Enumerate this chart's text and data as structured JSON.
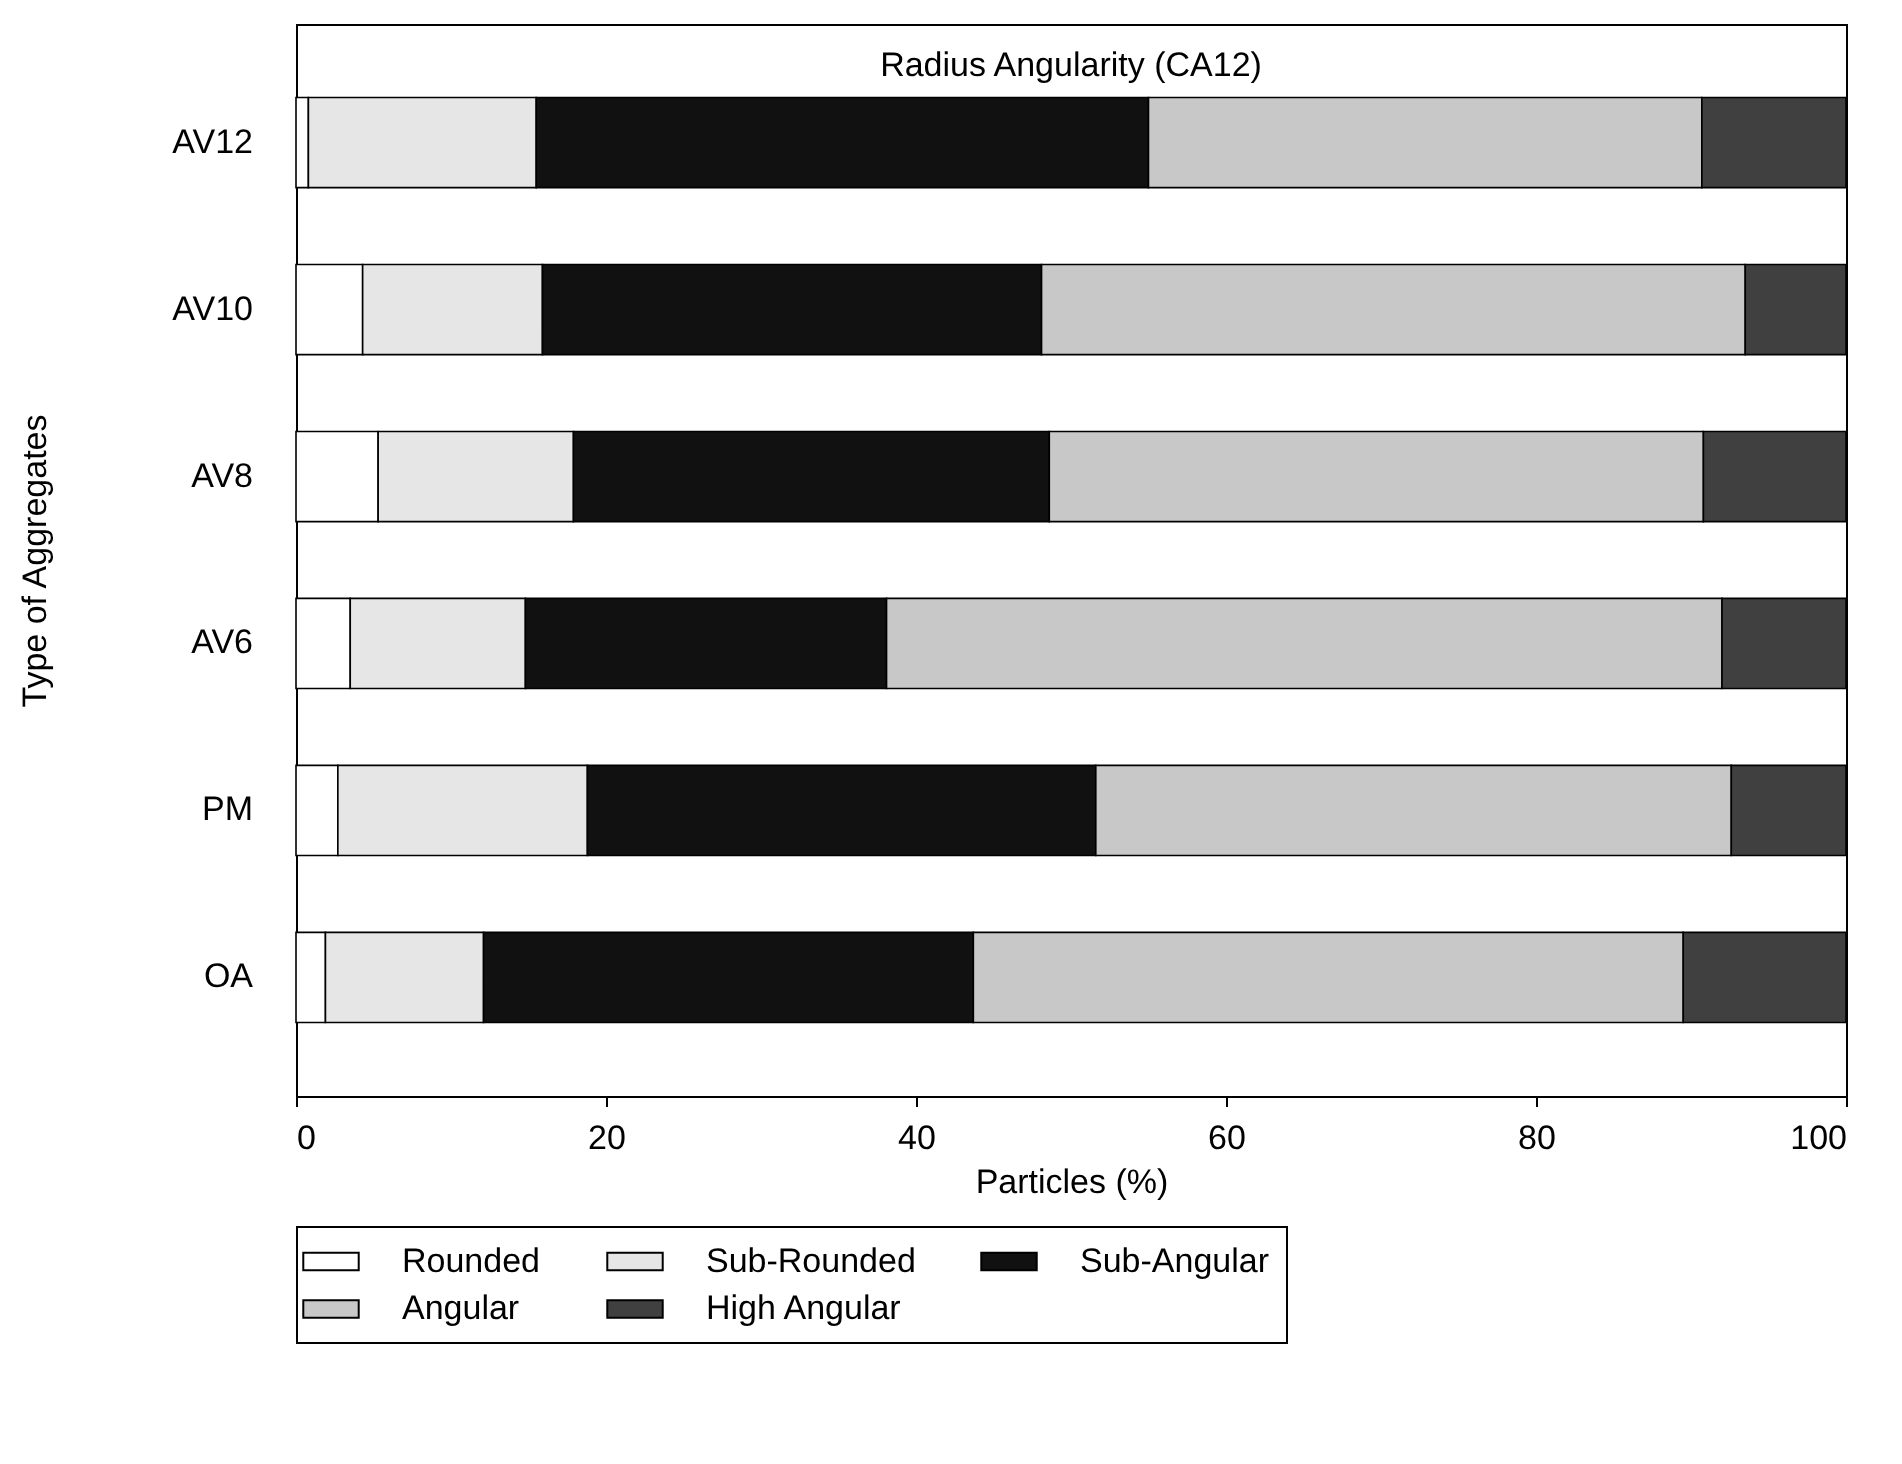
{
  "chart_data": {
    "type": "bar",
    "title": "Radius Angularity (CA12)",
    "xlabel": "Particles (%)",
    "ylabel": "Type of Aggregates",
    "orientation": "horizontal",
    "stacked": true,
    "categories": [
      "AV12",
      "AV10",
      "AV8",
      "AV6",
      "PM",
      "OA"
    ],
    "series": [
      {
        "name": "Rounded",
        "color": "#ffffff",
        "values": [
          0.8,
          4.3,
          5.3,
          3.5,
          2.7,
          1.9
        ]
      },
      {
        "name": "Sub-Rounded",
        "color": "#e6e6e6",
        "values": [
          14.7,
          11.6,
          12.6,
          11.3,
          16.1,
          10.2
        ]
      },
      {
        "name": "Sub-Angular",
        "color": "#111111",
        "values": [
          39.5,
          32.2,
          30.7,
          23.3,
          32.8,
          31.6
        ]
      },
      {
        "name": "Angular",
        "color": "#c8c8c8",
        "values": [
          35.7,
          45.4,
          42.2,
          53.9,
          41.0,
          45.8
        ]
      },
      {
        "name": "High Angular",
        "color": "#404040",
        "values": [
          9.3,
          6.5,
          9.2,
          8.0,
          7.4,
          10.5
        ]
      }
    ],
    "xlim": [
      0,
      100
    ],
    "xticks": [
      0,
      20,
      40,
      60,
      80,
      100
    ],
    "grid": false,
    "legend": "bottom"
  }
}
